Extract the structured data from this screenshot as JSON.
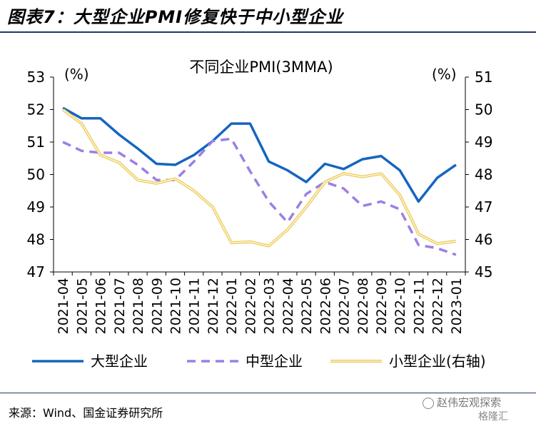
{
  "header": {
    "title": "图表7：大型企业PMI修复快于中小型企业"
  },
  "footer": {
    "source": "来源：Wind、国金证券研究所"
  },
  "watermark": {
    "text": "赵伟宏观探索",
    "sub": "格隆汇",
    "icon": "wechat-icon"
  },
  "chart_data": {
    "type": "line",
    "title": "不同企业PMI(3MMA)",
    "left_unit": "(%)",
    "right_unit": "(%)",
    "ylim_left": [
      47,
      53
    ],
    "ylim_right": [
      45,
      51
    ],
    "yticks_left": [
      47,
      48,
      49,
      50,
      51,
      52,
      53
    ],
    "yticks_right": [
      45,
      46,
      47,
      48,
      49,
      50,
      51
    ],
    "categories": [
      "2021-04",
      "2021-05",
      "2021-06",
      "2021-07",
      "2021-08",
      "2021-09",
      "2021-10",
      "2021-11",
      "2021-12",
      "2022-01",
      "2022-02",
      "2022-03",
      "2022-04",
      "2022-05",
      "2022-06",
      "2022-07",
      "2022-08",
      "2022-09",
      "2022-10",
      "2022-11",
      "2022-12",
      "2023-01"
    ],
    "series": [
      {
        "name": "大型企业",
        "axis": "left",
        "color": "#1565c0",
        "style": "solid",
        "values": [
          52.05,
          51.73,
          51.73,
          51.23,
          50.8,
          50.33,
          50.3,
          50.6,
          51.03,
          51.57,
          51.57,
          50.4,
          50.13,
          49.77,
          50.33,
          50.17,
          50.47,
          50.57,
          50.13,
          49.17,
          49.9,
          50.3
        ]
      },
      {
        "name": "中型企业",
        "axis": "left",
        "color": "#9b7fe6",
        "style": "dashed",
        "values": [
          51.0,
          50.73,
          50.67,
          50.67,
          50.3,
          49.83,
          49.83,
          50.4,
          51.03,
          51.1,
          50.1,
          49.17,
          48.53,
          49.4,
          49.77,
          49.57,
          49.03,
          49.17,
          48.93,
          47.83,
          47.73,
          47.53
        ]
      },
      {
        "name": "小型企业(右轴)",
        "axis": "right",
        "color": "#f5e28a",
        "style": "double",
        "values": [
          50.0,
          49.57,
          48.6,
          48.37,
          47.83,
          47.73,
          47.87,
          47.5,
          47.0,
          45.9,
          45.93,
          45.8,
          46.3,
          47.0,
          47.77,
          48.03,
          47.93,
          48.03,
          47.37,
          46.17,
          45.87,
          45.95
        ]
      }
    ]
  }
}
